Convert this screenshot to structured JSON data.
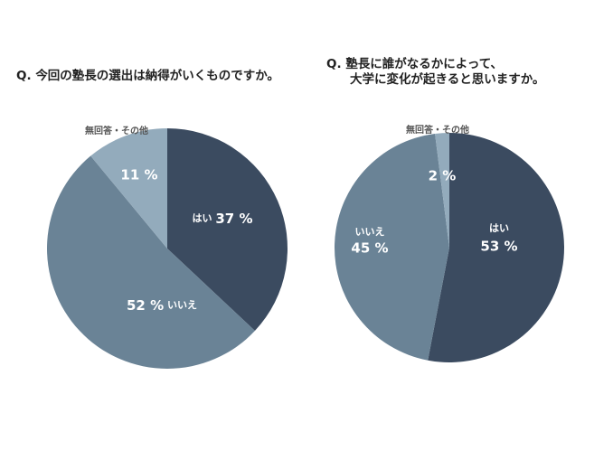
{
  "charts": [
    {
      "question_prefix": "Q.",
      "question_lines": [
        "今回の塾長の選出は納得がいくものですか。"
      ],
      "chart_data": {
        "type": "pie",
        "title": "Q. 今回の塾長の選出は納得がいくものですか。",
        "slices": [
          {
            "label": "はい",
            "value": 37,
            "display": "37 %",
            "color": "#3b4b60"
          },
          {
            "label": "いいえ",
            "value": 52,
            "display": "52 %",
            "color": "#6a8396"
          },
          {
            "label": "無回答・その他",
            "value": 11,
            "display": "11 %",
            "color": "#93abbc"
          }
        ]
      }
    },
    {
      "question_prefix": "Q.",
      "question_lines": [
        "塾長に誰がなるかによって、",
        "大学に変化が起きると思いますか。"
      ],
      "chart_data": {
        "type": "pie",
        "title": "Q. 塾長に誰がなるかによって、大学に変化が起きると思いますか。",
        "slices": [
          {
            "label": "はい",
            "value": 53,
            "display": "53 %",
            "color": "#3b4b60"
          },
          {
            "label": "いいえ",
            "value": 45,
            "display": "45 %",
            "color": "#6a8396"
          },
          {
            "label": "無回答・その他",
            "value": 2,
            "display": "2 %",
            "color": "#93abbc"
          }
        ]
      }
    }
  ]
}
